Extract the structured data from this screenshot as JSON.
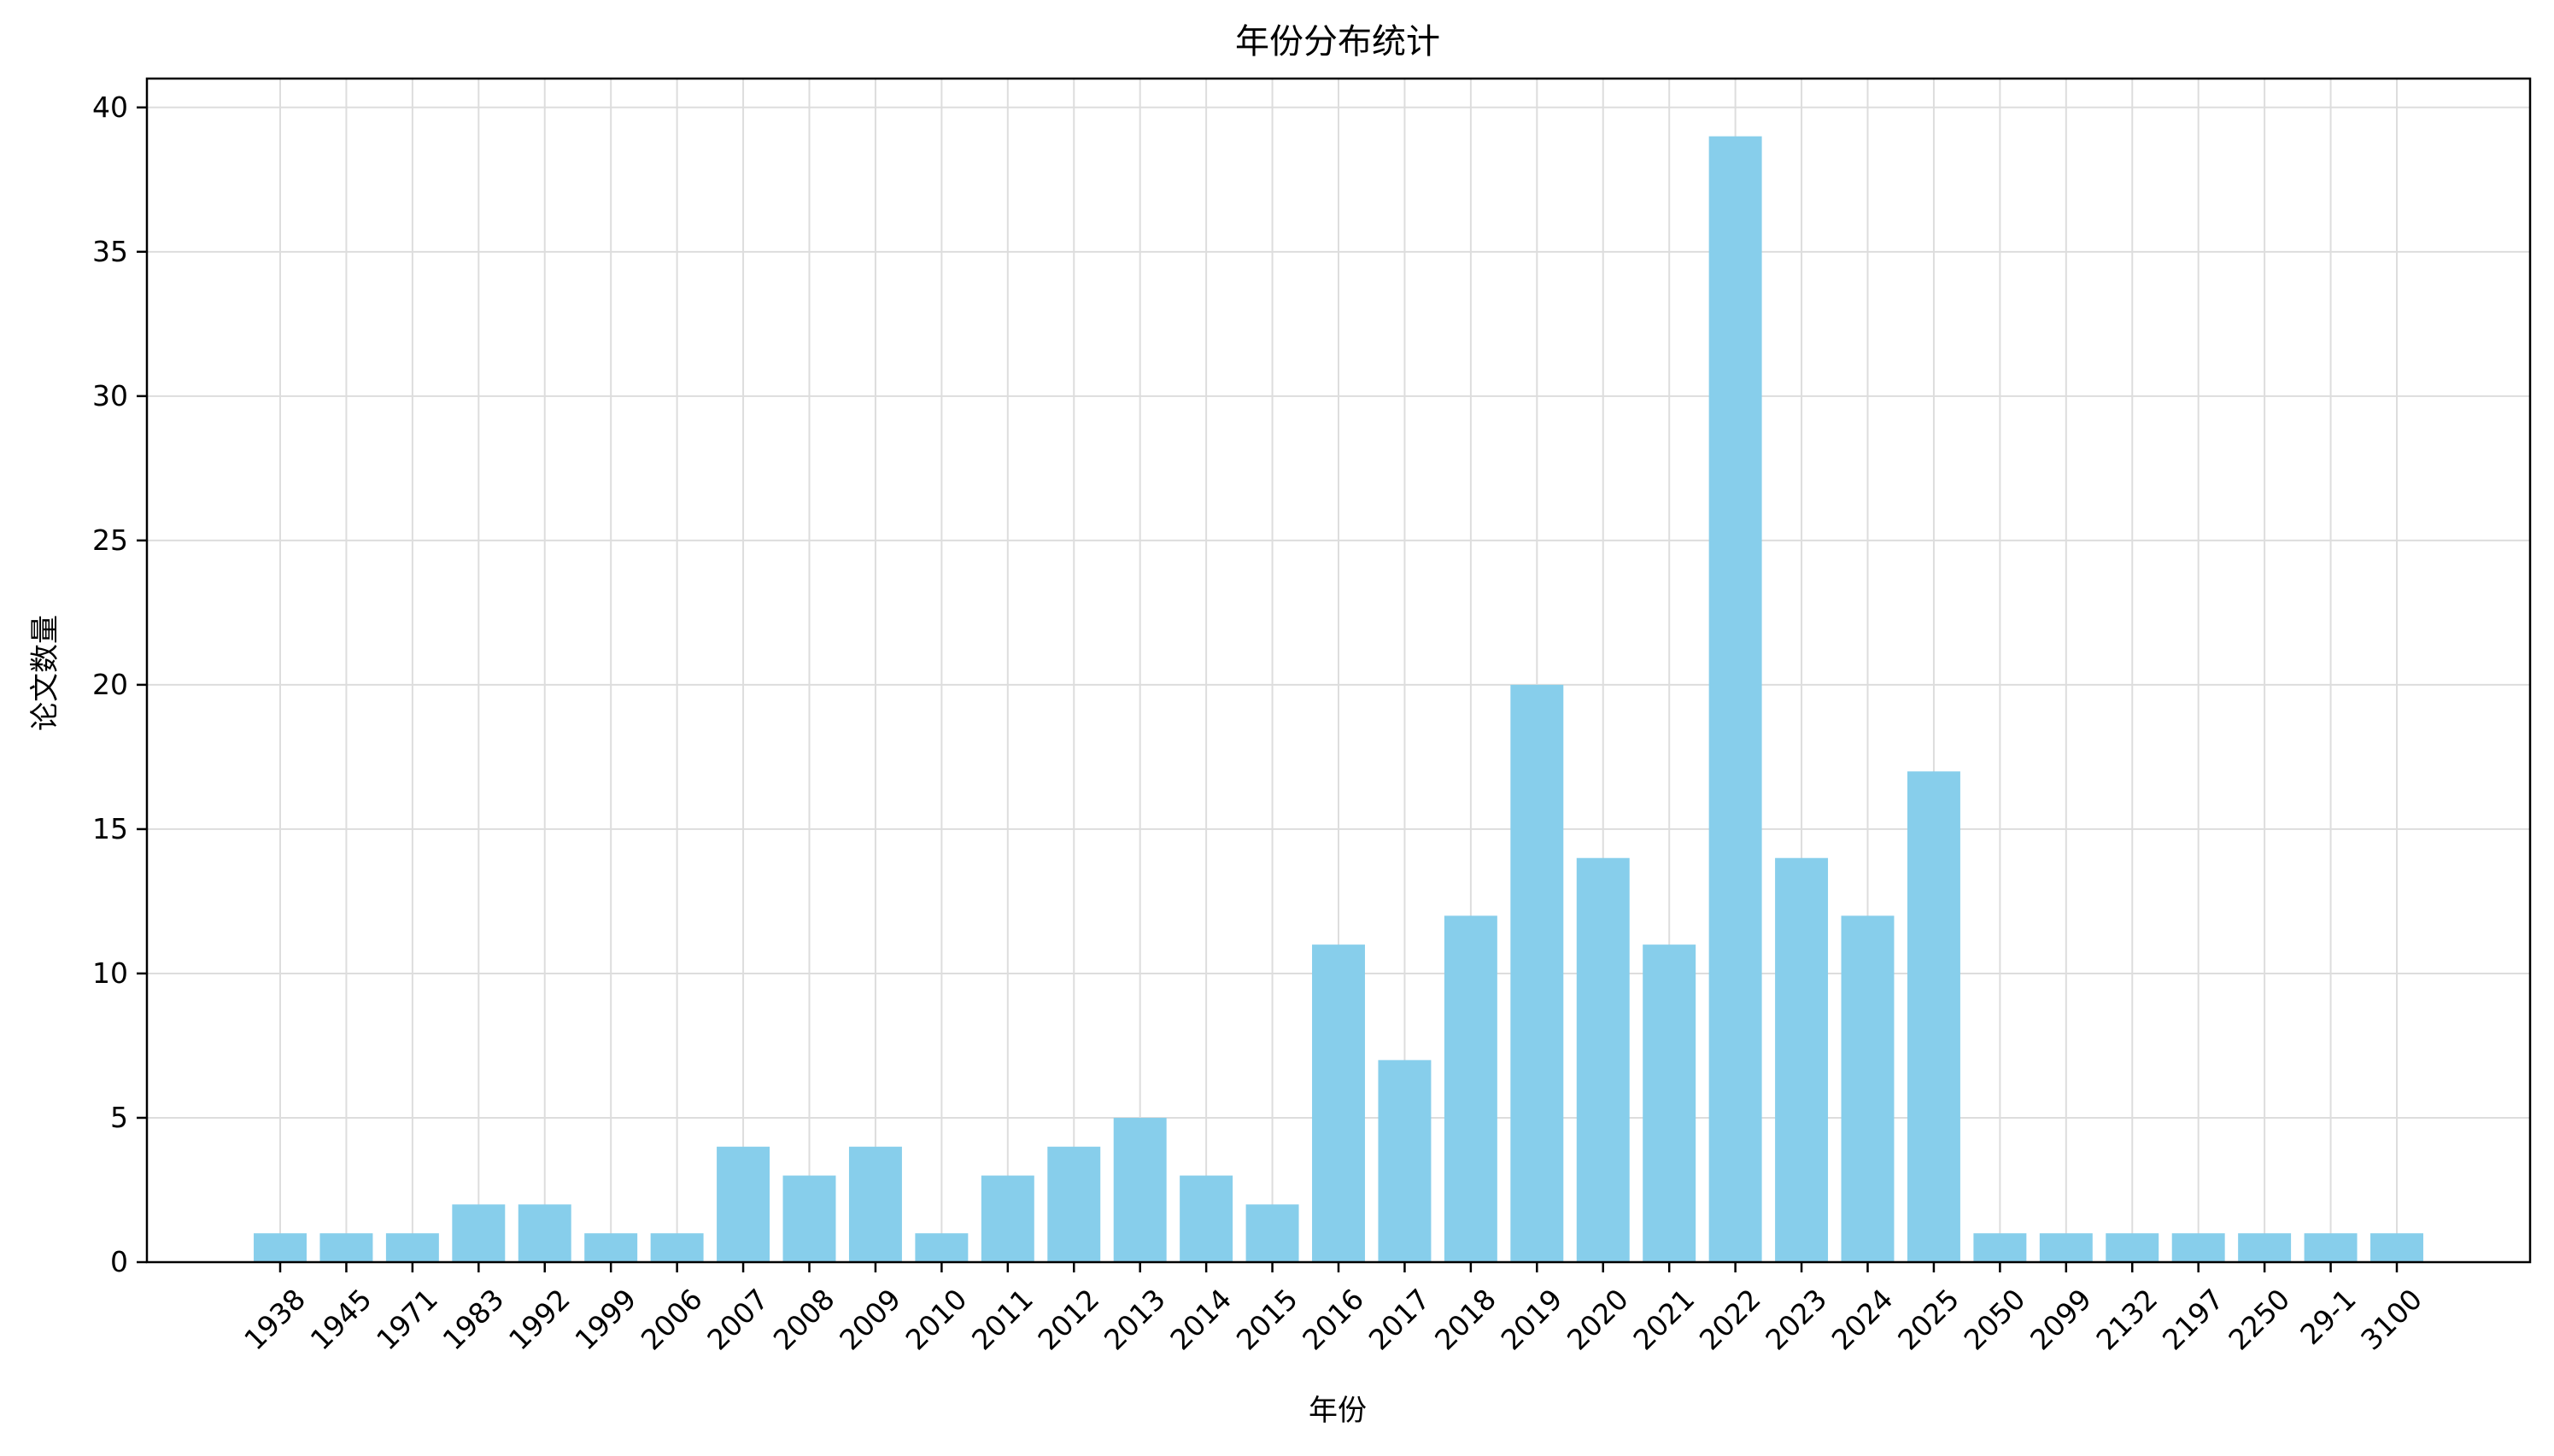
{
  "chart_data": {
    "type": "bar",
    "title": "年份分布统计",
    "xlabel": "年份",
    "ylabel": "论文数量",
    "categories": [
      "1938",
      "1945",
      "1971",
      "1983",
      "1992",
      "1999",
      "2006",
      "2007",
      "2008",
      "2009",
      "2010",
      "2011",
      "2012",
      "2013",
      "2014",
      "2015",
      "2016",
      "2017",
      "2018",
      "2019",
      "2020",
      "2021",
      "2022",
      "2023",
      "2024",
      "2025",
      "2050",
      "2099",
      "2132",
      "2197",
      "2250",
      "29-1",
      "3100"
    ],
    "values": [
      1,
      1,
      1,
      2,
      2,
      1,
      1,
      4,
      3,
      4,
      1,
      3,
      4,
      5,
      3,
      2,
      11,
      7,
      12,
      20,
      14,
      11,
      39,
      14,
      12,
      17,
      1,
      1,
      1,
      1,
      1,
      1,
      1
    ],
    "ylim": [
      0,
      41
    ],
    "yticks": [
      0,
      5,
      10,
      15,
      20,
      25,
      30,
      35,
      40
    ],
    "grid": true,
    "bar_color": "#87CEEB",
    "axis_color": "#000000",
    "grid_color": "#dddddd"
  }
}
